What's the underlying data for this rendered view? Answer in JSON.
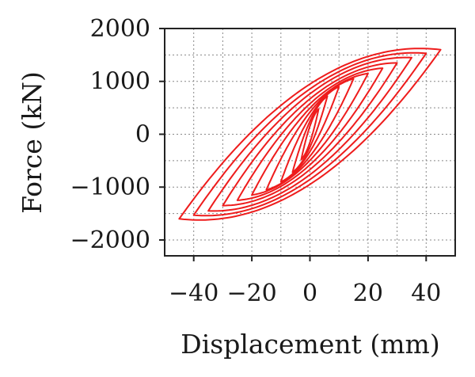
{
  "chart_data": {
    "type": "line",
    "title": "",
    "xlabel": "Displacement (mm)",
    "ylabel": "Force (kN)",
    "xlim": [
      -50,
      50
    ],
    "ylim": [
      -2300,
      2000
    ],
    "xticks": [
      -40,
      -20,
      0,
      20,
      40
    ],
    "xtick_labels": [
      "−40",
      "−20",
      "0",
      "20",
      "40"
    ],
    "yticks": [
      2000,
      1000,
      0,
      -1000,
      -2000
    ],
    "ytick_labels": [
      "2000",
      "1000",
      "0",
      "−1000",
      "−2000"
    ],
    "grid": true,
    "grid_style": "dotted",
    "legend": "none",
    "line_color": "#ee1c1c",
    "series": [
      {
        "amplitude_mm": 3,
        "peak_force_kN": 480
      },
      {
        "amplitude_mm": 6,
        "peak_force_kN": 720
      },
      {
        "amplitude_mm": 10,
        "peak_force_kN": 900
      },
      {
        "amplitude_mm": 15,
        "peak_force_kN": 1050
      },
      {
        "amplitude_mm": 20,
        "peak_force_kN": 1150
      },
      {
        "amplitude_mm": 25,
        "peak_force_kN": 1250
      },
      {
        "amplitude_mm": 30,
        "peak_force_kN": 1350
      },
      {
        "amplitude_mm": 35,
        "peak_force_kN": 1450
      },
      {
        "amplitude_mm": 40,
        "peak_force_kN": 1530
      },
      {
        "amplitude_mm": 45,
        "peak_force_kN": 1600
      }
    ]
  }
}
